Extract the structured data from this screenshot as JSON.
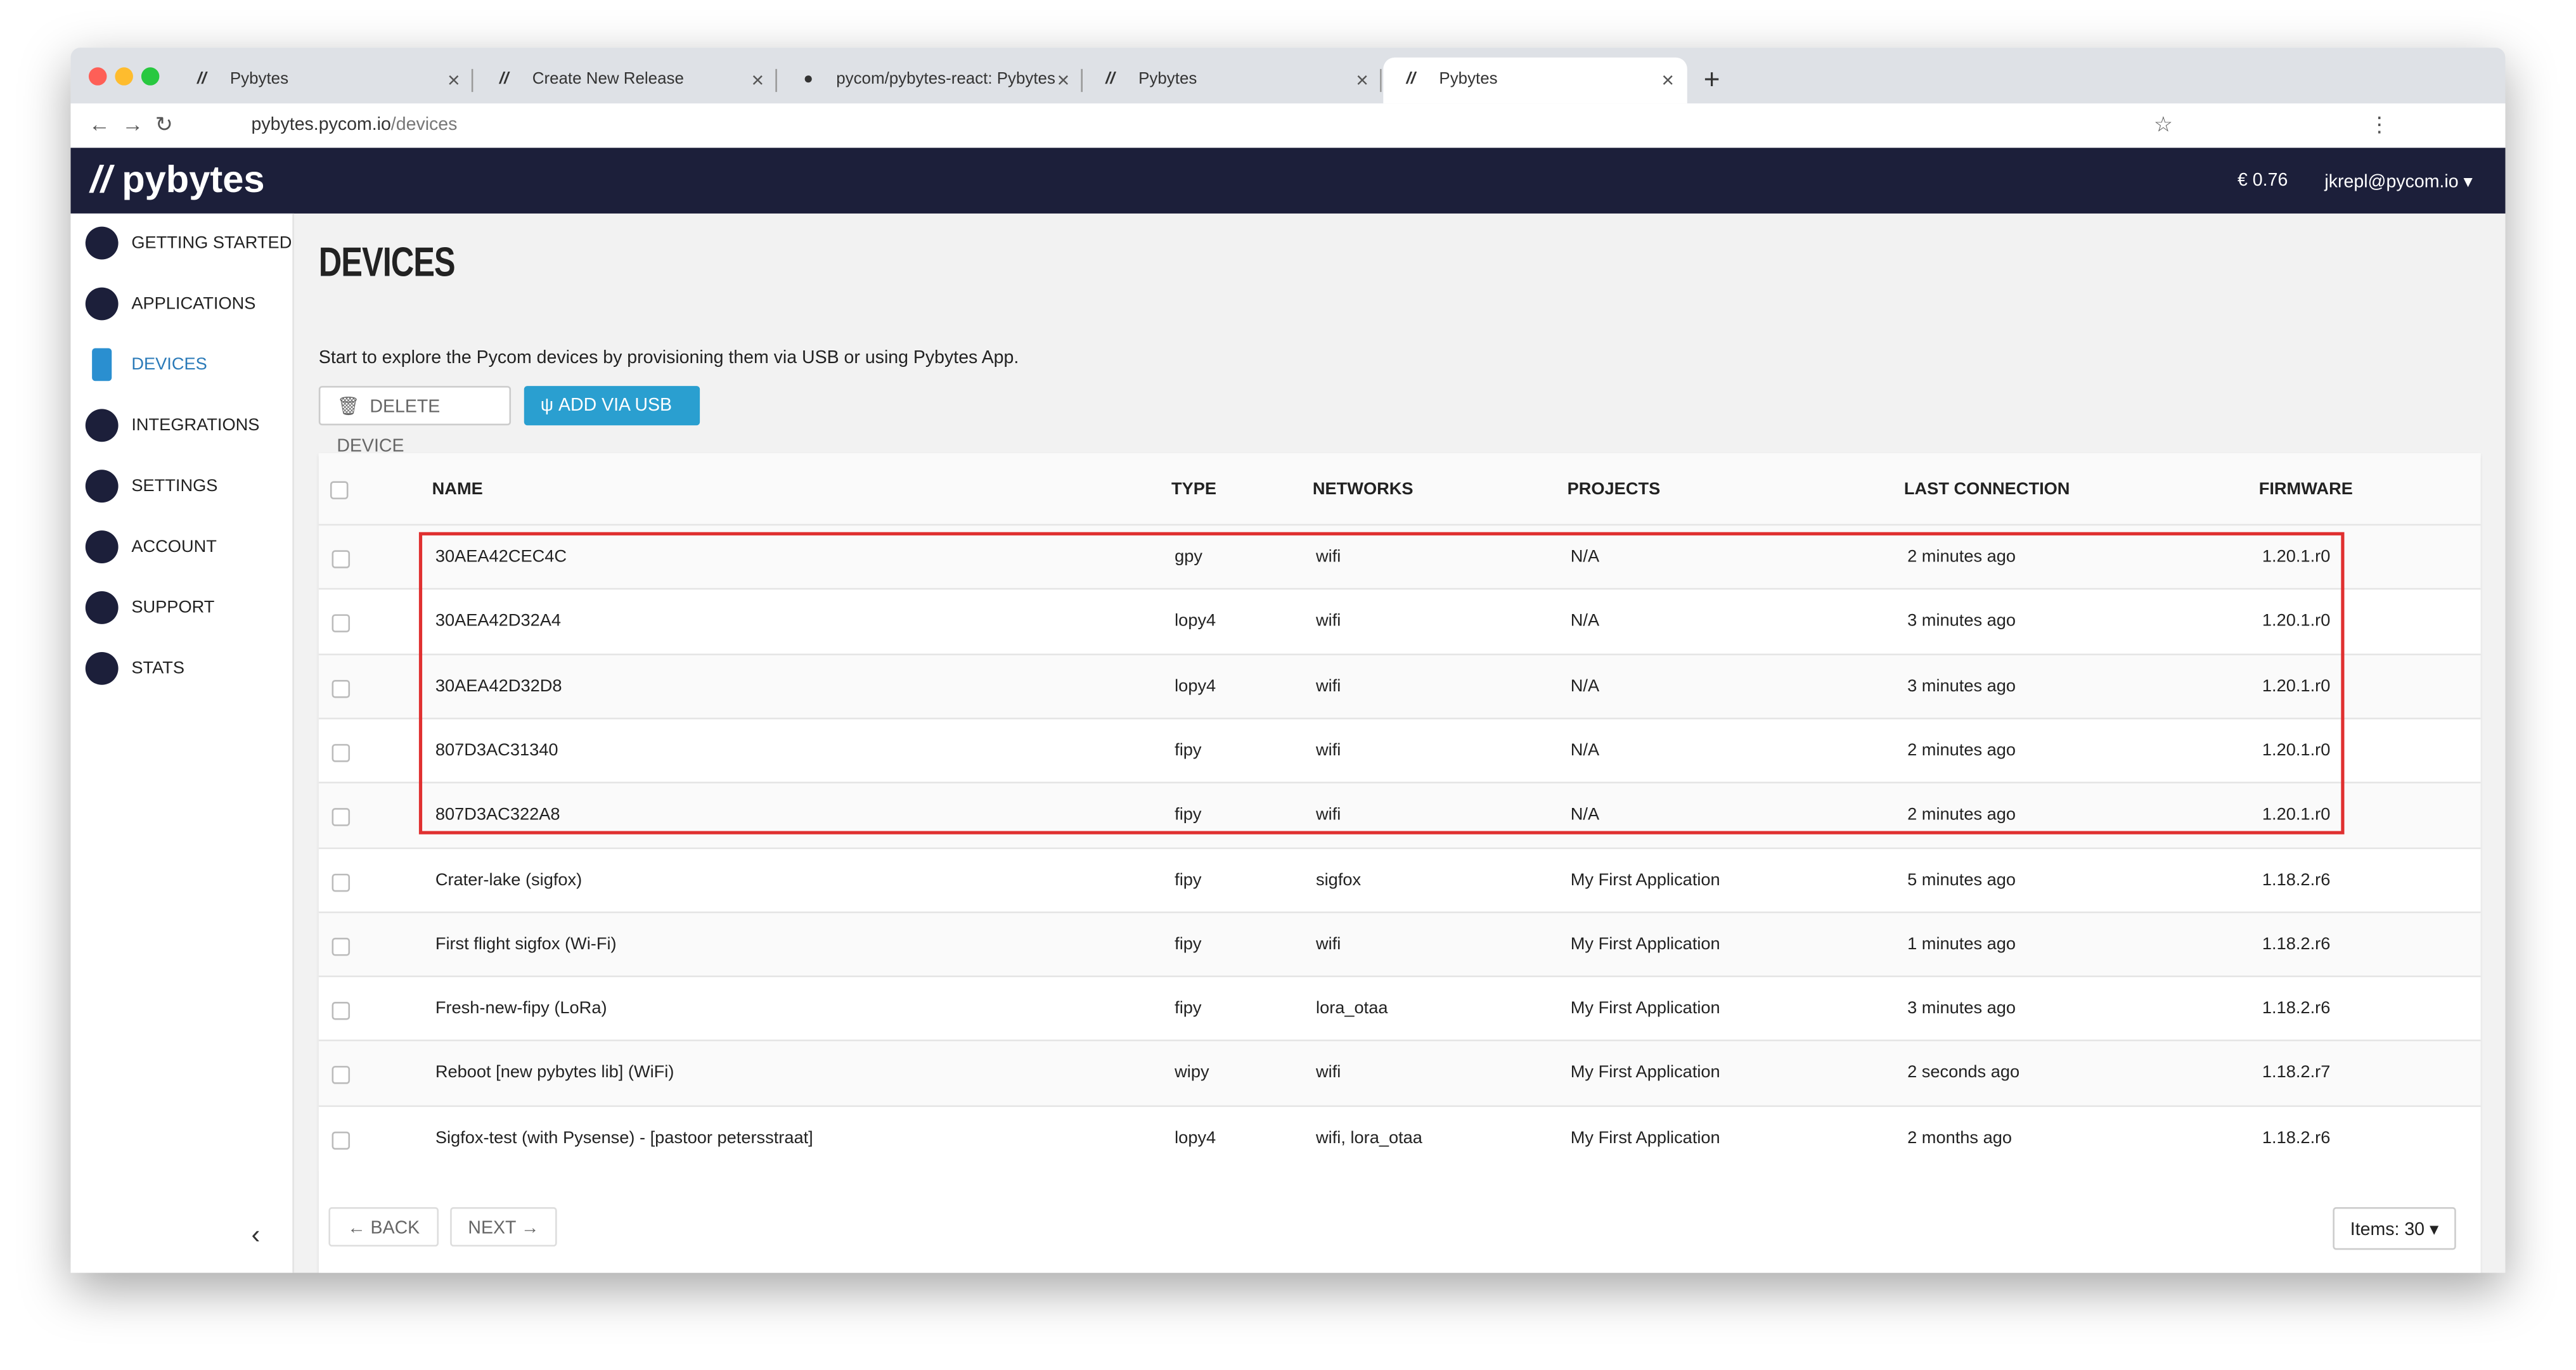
{
  "browser": {
    "tabs": [
      "Pybytes",
      "Create New Release",
      "pycom/pybytes-react: Pybytes",
      "Pybytes",
      "Pybytes"
    ],
    "url_host": "pybytes.pycom.io",
    "url_path": "/devices"
  },
  "header": {
    "logo": "pybytes",
    "balance": "€ 0.76",
    "user": "jkrepl@pycom.io"
  },
  "sidebar": {
    "items": [
      "GETTING STARTED",
      "APPLICATIONS",
      "DEVICES",
      "INTEGRATIONS",
      "SETTINGS",
      "ACCOUNT",
      "SUPPORT",
      "STATS"
    ]
  },
  "page": {
    "title": "DEVICES",
    "description": "Start to explore the Pycom devices by provisioning them via USB or using Pybytes App.",
    "buttons": [
      "DELETE DEVICE",
      "ADD VIA USB"
    ]
  },
  "table": {
    "columns": [
      "NAME",
      "TYPE",
      "NETWORKS",
      "PROJECTS",
      "LAST CONNECTION",
      "FIRMWARE"
    ],
    "rows": [
      [
        "30AEA42CEC4C",
        "gpy",
        "wifi",
        "N/A",
        "2 minutes ago",
        "1.20.1.r0"
      ],
      [
        "30AEA42D32A4",
        "lopy4",
        "wifi",
        "N/A",
        "3 minutes ago",
        "1.20.1.r0"
      ],
      [
        "30AEA42D32D8",
        "lopy4",
        "wifi",
        "N/A",
        "3 minutes ago",
        "1.20.1.r0"
      ],
      [
        "807D3AC31340",
        "fipy",
        "wifi",
        "N/A",
        "2 minutes ago",
        "1.20.1.r0"
      ],
      [
        "807D3AC322A8",
        "fipy",
        "wifi",
        "N/A",
        "2 minutes ago",
        "1.20.1.r0"
      ],
      [
        "Crater-lake (sigfox)",
        "fipy",
        "sigfox",
        "My First Application",
        "5 minutes ago",
        "1.18.2.r6"
      ],
      [
        "First flight sigfox (Wi-Fi)",
        "fipy",
        "wifi",
        "My First Application",
        "1 minutes ago",
        "1.18.2.r6"
      ],
      [
        "Fresh-new-fipy (LoRa)",
        "fipy",
        "lora_otaa",
        "My First Application",
        "3 minutes ago",
        "1.18.2.r6"
      ],
      [
        "Reboot [new pybytes lib] (WiFi)",
        "wipy",
        "wifi",
        "My First Application",
        "2 seconds ago",
        "1.18.2.r7"
      ],
      [
        "Sigfox-test (with Pysense) - [pastoor petersstraat]",
        "lopy4",
        "wifi, lora_otaa",
        "My First Application",
        "2 months ago",
        "1.18.2.r6"
      ]
    ]
  },
  "pagination": {
    "back": "← BACK",
    "next": "NEXT →",
    "items": "Items: 30"
  }
}
